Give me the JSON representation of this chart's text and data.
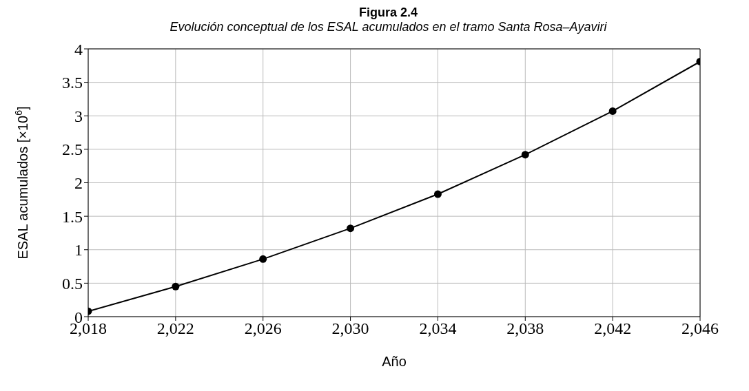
{
  "chart_data": {
    "type": "line",
    "title": "Figura 2.4",
    "subtitle": "Evolución conceptual de los ESAL acumulados en el tramo Santa Rosa–Ayaviri",
    "xlabel": "Año",
    "ylabel": "ESAL acumulados [×10$^{6}$]",
    "x": [
      2018,
      2022,
      2026,
      2030,
      2034,
      2038,
      2042,
      2046
    ],
    "series": [
      {
        "color": "#000000",
        "values": [
          0.08,
          0.45,
          0.86,
          1.32,
          1.83,
          2.42,
          3.07,
          3.81
        ]
      }
    ],
    "xlim": [
      2018,
      2046
    ],
    "xticks": [
      {
        "value": 2018,
        "label": "2,018"
      },
      {
        "value": 2022,
        "label": "2,022"
      },
      {
        "value": 2026,
        "label": "2,026"
      },
      {
        "value": 2030,
        "label": "2,030"
      },
      {
        "value": 2034,
        "label": "2,034"
      },
      {
        "value": 2038,
        "label": "2,038"
      },
      {
        "value": 2042,
        "label": "2,042"
      },
      {
        "value": 2046,
        "label": "2,046"
      }
    ],
    "ylim": [
      0,
      4
    ],
    "yticks": [
      0,
      0.5,
      1,
      1.5,
      2,
      2.5,
      3,
      3.5,
      4
    ],
    "grid": true,
    "marker": "circle",
    "line_style": "solid"
  }
}
